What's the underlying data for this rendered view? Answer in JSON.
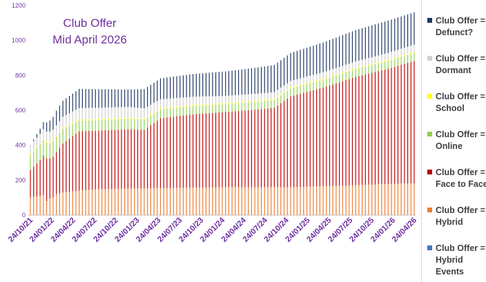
{
  "chart_data": {
    "type": "bar",
    "stacked": true,
    "title_lines": [
      "Club Offer",
      "Mid April 2026"
    ],
    "yticks": [
      0,
      200,
      400,
      600,
      800,
      1000,
      1200
    ],
    "ylim": [
      0,
      1200
    ],
    "tick_labels": [
      "24/10/21",
      "24/01/22",
      "24/04/22",
      "24/07/22",
      "24/10/22",
      "24/01/23",
      "24/04/23",
      "24/07/23",
      "24/10/23",
      "24/01/24",
      "24/04/24",
      "24/07/24",
      "24/10/24",
      "24/01/25",
      "24/04/25",
      "24/07/25",
      "24/10/25",
      "24/01/26",
      "24/04/26"
    ],
    "legend_position": "right",
    "grid": false,
    "num_bars": 119,
    "series": [
      {
        "name": "Club Offer = Hybrid Events",
        "color": "#4472c4",
        "anchors": [
          [
            0,
            0
          ],
          [
            118,
            0
          ]
        ]
      },
      {
        "name": "Club Offer = Hybrid",
        "color": "#ed7d31",
        "anchors": [
          [
            0,
            100
          ],
          [
            3,
            110
          ],
          [
            4,
            115
          ],
          [
            5,
            80
          ],
          [
            6,
            95
          ],
          [
            7,
            100
          ],
          [
            8,
            120
          ],
          [
            10,
            130
          ],
          [
            15,
            140
          ],
          [
            20,
            148
          ],
          [
            40,
            155
          ],
          [
            60,
            160
          ],
          [
            80,
            160
          ],
          [
            95,
            168
          ],
          [
            105,
            175
          ],
          [
            118,
            183
          ]
        ]
      },
      {
        "name": "Club Offer = Face to Face",
        "color": "#c00000",
        "anchors": [
          [
            0,
            160
          ],
          [
            3,
            205
          ],
          [
            5,
            245
          ],
          [
            6,
            230
          ],
          [
            7,
            235
          ],
          [
            8,
            240
          ],
          [
            10,
            280
          ],
          [
            15,
            340
          ],
          [
            20,
            335
          ],
          [
            30,
            340
          ],
          [
            35,
            335
          ],
          [
            40,
            400
          ],
          [
            50,
            420
          ],
          [
            60,
            430
          ],
          [
            70,
            445
          ],
          [
            75,
            455
          ],
          [
            80,
            520
          ],
          [
            90,
            565
          ],
          [
            100,
            620
          ],
          [
            110,
            660
          ],
          [
            118,
            700
          ]
        ]
      },
      {
        "name": "Club Offer = Online",
        "color": "#92d050",
        "anchors": [
          [
            0,
            85
          ],
          [
            5,
            90
          ],
          [
            10,
            85
          ],
          [
            15,
            60
          ],
          [
            30,
            60
          ],
          [
            35,
            60
          ],
          [
            40,
            50
          ],
          [
            60,
            45
          ],
          [
            80,
            45
          ],
          [
            100,
            45
          ],
          [
            118,
            45
          ]
        ]
      },
      {
        "name": "Club Offer = School",
        "color": "#ffff00",
        "anchors": [
          [
            0,
            8
          ],
          [
            30,
            8
          ],
          [
            60,
            8
          ],
          [
            118,
            8
          ]
        ]
      },
      {
        "name": "Club Offer = Dormant",
        "color": "#d0d0d0",
        "anchors": [
          [
            0,
            50
          ],
          [
            10,
            60
          ],
          [
            15,
            65
          ],
          [
            30,
            60
          ],
          [
            40,
            50
          ],
          [
            60,
            40
          ],
          [
            80,
            35
          ],
          [
            100,
            35
          ],
          [
            118,
            40
          ]
        ]
      },
      {
        "name": "Club Offer = Defunct?",
        "color": "#1f3864",
        "anchors": [
          [
            0,
            0
          ],
          [
            2,
            20
          ],
          [
            8,
            85
          ],
          [
            15,
            110
          ],
          [
            30,
            100
          ],
          [
            35,
            110
          ],
          [
            40,
            120
          ],
          [
            50,
            130
          ],
          [
            60,
            140
          ],
          [
            70,
            150
          ],
          [
            80,
            160
          ],
          [
            90,
            170
          ],
          [
            100,
            180
          ],
          [
            110,
            185
          ],
          [
            118,
            185
          ]
        ]
      }
    ]
  },
  "legend": {
    "items": [
      {
        "label": "Club Offer = Defunct?",
        "color": "#1f3864"
      },
      {
        "label": "Club Offer = Dormant",
        "color": "#d0d0d0"
      },
      {
        "label": "Club Offer = School",
        "color": "#ffff00"
      },
      {
        "label": "Club Offer = Online",
        "color": "#92d050"
      },
      {
        "label": "Club Offer = Face to Face",
        "color": "#c00000"
      },
      {
        "label": "Club Offer = Hybrid",
        "color": "#ed7d31"
      },
      {
        "label": "Club Offer = Hybrid Events",
        "color": "#4472c4"
      }
    ]
  }
}
